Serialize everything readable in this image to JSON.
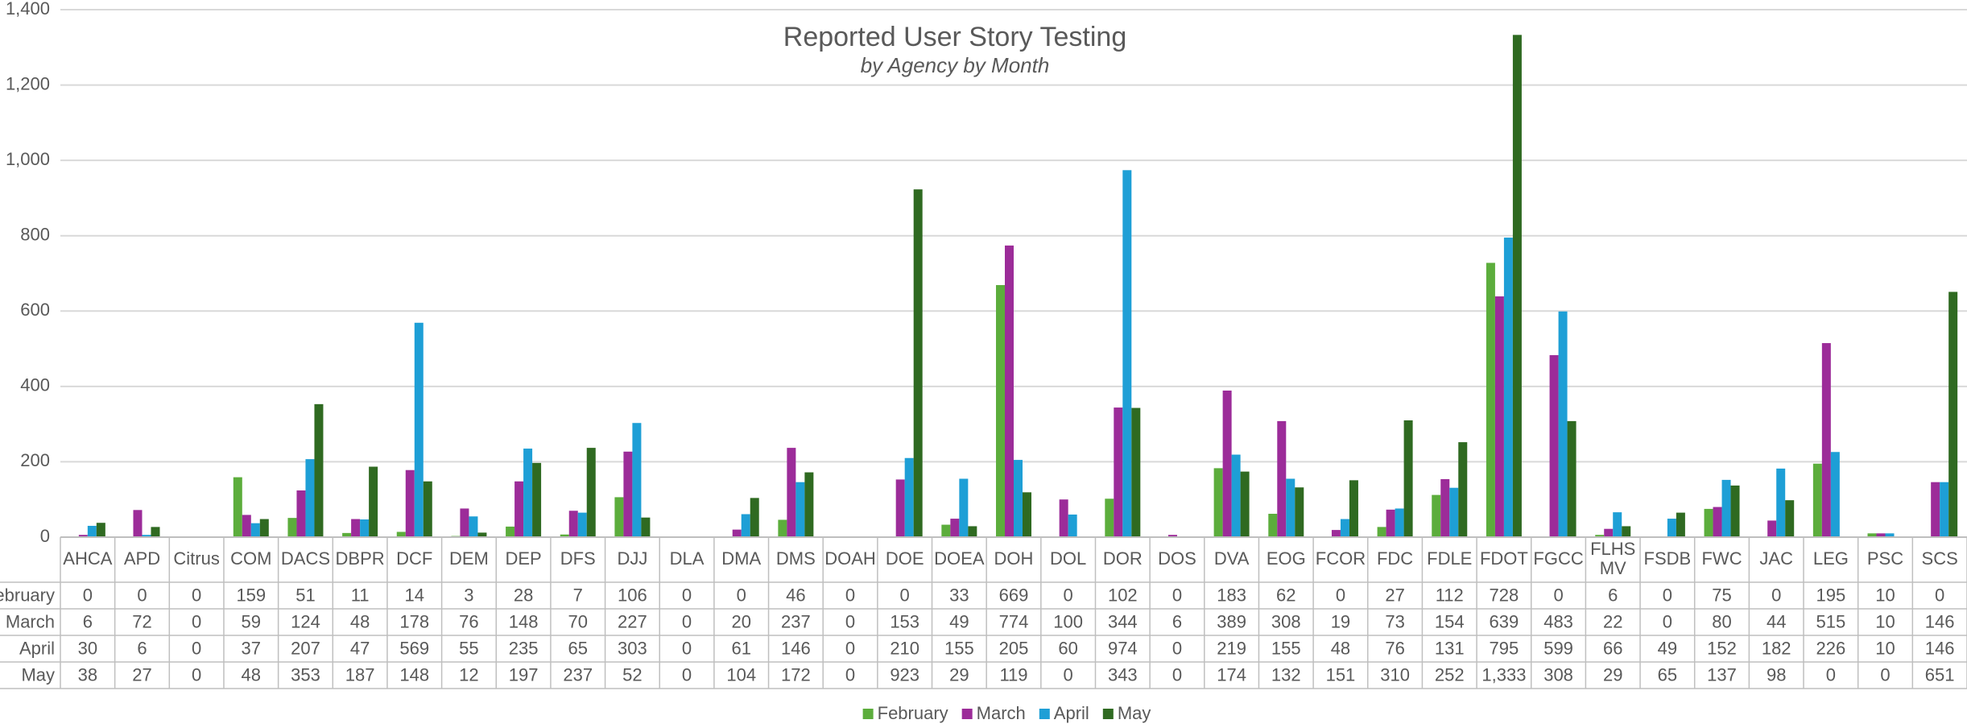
{
  "chart_data": {
    "type": "bar",
    "title": "Reported User Story Testing",
    "subtitle": "by Agency by Month",
    "categories": [
      "AHCA",
      "APD",
      "Citrus",
      "COM",
      "DACS",
      "DBPR",
      "DCF",
      "DEM",
      "DEP",
      "DFS",
      "DJJ",
      "DLA",
      "DMA",
      "DMS",
      "DOAH",
      "DOE",
      "DOEA",
      "DOH",
      "DOL",
      "DOR",
      "DOS",
      "DVA",
      "EOG",
      "FCOR",
      "FDC",
      "FDLE",
      "FDOT",
      "FGCC",
      "FLHS MV",
      "FSDB",
      "FWC",
      "JAC",
      "LEG",
      "PSC",
      "SCS"
    ],
    "series": [
      {
        "name": "February",
        "color": "#5cad3c",
        "values": [
          0,
          0,
          0,
          159,
          51,
          11,
          14,
          3,
          28,
          7,
          106,
          0,
          0,
          46,
          0,
          0,
          33,
          669,
          0,
          102,
          0,
          183,
          62,
          0,
          27,
          112,
          728,
          0,
          6,
          0,
          75,
          0,
          195,
          10,
          0
        ]
      },
      {
        "name": "March",
        "color": "#9c2c99",
        "values": [
          6,
          72,
          0,
          59,
          124,
          48,
          178,
          76,
          148,
          70,
          227,
          0,
          20,
          237,
          0,
          153,
          49,
          774,
          100,
          344,
          6,
          389,
          308,
          19,
          73,
          154,
          639,
          483,
          22,
          0,
          80,
          44,
          515,
          10,
          146
        ]
      },
      {
        "name": "April",
        "color": "#1e9fd6",
        "values": [
          30,
          6,
          0,
          37,
          207,
          47,
          569,
          55,
          235,
          65,
          303,
          0,
          61,
          146,
          0,
          210,
          155,
          205,
          60,
          974,
          0,
          219,
          155,
          48,
          76,
          131,
          795,
          599,
          66,
          49,
          152,
          182,
          226,
          10,
          146
        ]
      },
      {
        "name": "May",
        "color": "#2f6a21",
        "values": [
          38,
          27,
          0,
          48,
          353,
          187,
          148,
          12,
          197,
          237,
          52,
          0,
          104,
          172,
          0,
          923,
          29,
          119,
          0,
          343,
          0,
          174,
          132,
          151,
          310,
          252,
          1333,
          308,
          29,
          65,
          137,
          98,
          0,
          0,
          651
        ],
        "value_labels": [
          "38",
          "27",
          "0",
          "48",
          "353",
          "187",
          "148",
          "12",
          "197",
          "237",
          "52",
          "0",
          "104",
          "172",
          "0",
          "923",
          "29",
          "119",
          "0",
          "343",
          "0",
          "174",
          "132",
          "151",
          "310",
          "252",
          "1,333",
          "308",
          "29",
          "65",
          "137",
          "98",
          "0",
          "0",
          "651"
        ]
      }
    ],
    "ylim": [
      0,
      1400
    ],
    "yticks": [
      0,
      200,
      400,
      600,
      800,
      {
        "value": 1000,
        "label": "1,000"
      },
      {
        "value": 1200,
        "label": "1,200"
      },
      {
        "value": 1400,
        "label": "1,400"
      }
    ],
    "grid": true,
    "legend": "bottom"
  }
}
